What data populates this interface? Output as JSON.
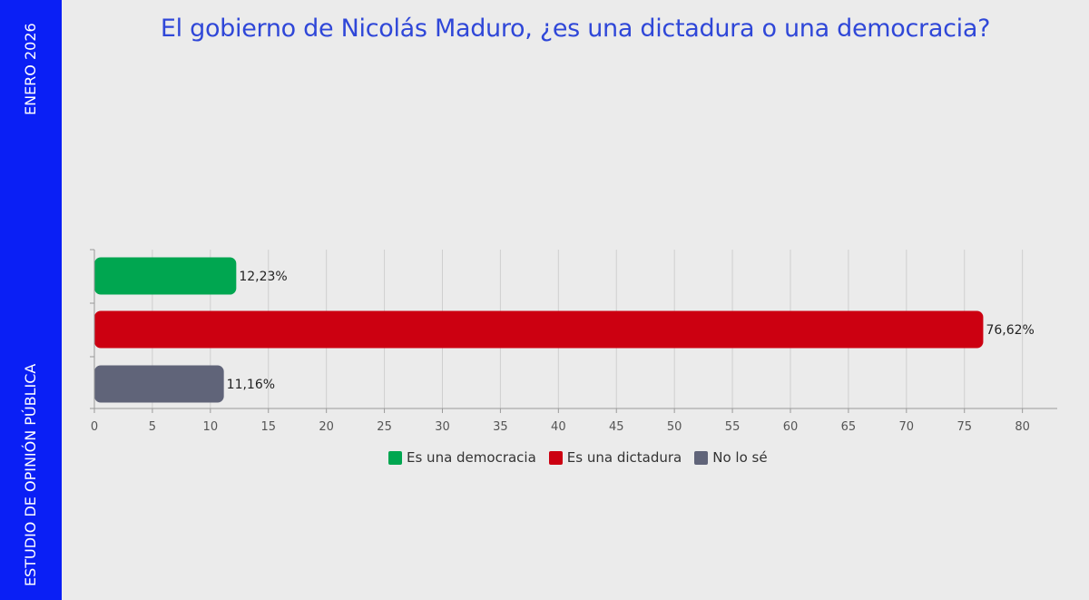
{
  "sidebar": {
    "top_text": "ENERO 2026",
    "bottom_text": "ESTUDIO DE OPINIÓN PÚBLICA"
  },
  "colors": {
    "sidebar": "#0a1ff5",
    "title": "#2f47d8",
    "democracia": "#00a650",
    "dictadura": "#cc0011",
    "no_lo_se": "#606479"
  },
  "chart_data": {
    "type": "bar",
    "orientation": "horizontal",
    "title": "El gobierno de Nicolás Maduro, ¿es una dictadura o una democracia?",
    "categories": [
      "Es una democracia",
      "Es una dictadura",
      "No lo sé"
    ],
    "values": [
      12.23,
      76.62,
      11.16
    ],
    "value_labels": [
      "12,23%",
      "76,62%",
      "11,16%"
    ],
    "series_colors": [
      "#00a650",
      "#cc0011",
      "#606479"
    ],
    "xlim": [
      0,
      83
    ],
    "xticks": [
      0,
      5,
      10,
      15,
      20,
      25,
      30,
      35,
      40,
      45,
      50,
      55,
      60,
      65,
      70,
      75,
      80
    ],
    "grid": true,
    "legend": {
      "position": "bottom",
      "entries": [
        "Es una democracia",
        "Es una dictadura",
        "No lo sé"
      ]
    }
  }
}
